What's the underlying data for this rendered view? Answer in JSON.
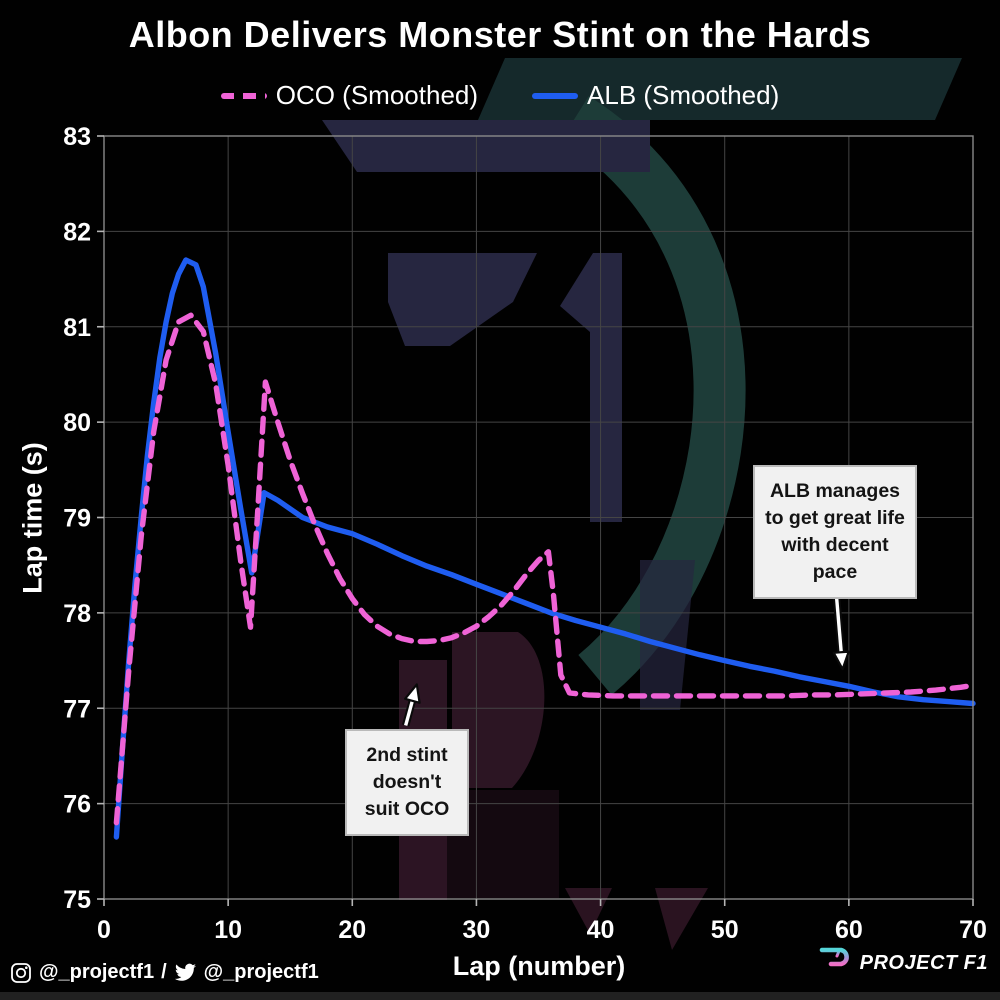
{
  "title": "Albon Delivers Monster Stint on the Hards",
  "legend": [
    {
      "label": "OCO (Smoothed)",
      "color": "#ef63d6",
      "style": "dashed"
    },
    {
      "label": "ALB (Smoothed)",
      "color": "#1f5df0",
      "style": "solid"
    }
  ],
  "colors": {
    "oco": "#ef63d6",
    "alb": "#1f5df0",
    "background": "#000000",
    "grid": "#454545",
    "annotation_bg": "#f1f1f1",
    "watermark_teal": "#1d3c38",
    "watermark_slate": "#262640",
    "watermark_maroon": "#2c1523",
    "logo_gradient_top": "#55d6d9",
    "logo_gradient_bottom": "#f06fc5"
  },
  "footer": {
    "instagram_handle": "@_projectf1",
    "separator": "/",
    "twitter_handle": "@_projectf1",
    "brand": "PROJECT F1"
  },
  "chart_data": {
    "type": "line",
    "title": "Albon Delivers Monster Stint on the Hards",
    "xlabel": "Lap (number)",
    "ylabel": "Lap time (s)",
    "xlim": [
      0,
      70
    ],
    "ylim": [
      75,
      83
    ],
    "xticks": [
      0,
      10,
      20,
      30,
      40,
      50,
      60,
      70
    ],
    "yticks": [
      75,
      76,
      77,
      78,
      79,
      80,
      81,
      82,
      83
    ],
    "grid": true,
    "legend_position": "top",
    "series": [
      {
        "name": "ALB (Smoothed)",
        "color": "#1f5df0",
        "dash": null,
        "x": [
          1,
          1.5,
          2,
          2.5,
          3,
          3.5,
          4,
          4.5,
          5,
          5.5,
          6,
          6.6,
          7.4,
          8,
          9,
          10,
          11,
          11.9,
          12.9,
          14,
          16,
          18,
          20,
          22,
          24,
          26,
          28,
          30,
          32,
          34,
          36,
          38,
          40,
          42,
          44,
          46,
          48,
          50,
          52,
          54,
          56,
          58,
          60,
          62,
          64,
          66,
          68,
          70
        ],
        "y": [
          75.65,
          76.6,
          77.5,
          78.3,
          79.0,
          79.65,
          80.2,
          80.68,
          81.05,
          81.35,
          81.55,
          81.7,
          81.65,
          81.42,
          80.72,
          79.9,
          79.1,
          78.42,
          79.26,
          79.18,
          79.0,
          78.9,
          78.83,
          78.72,
          78.6,
          78.49,
          78.4,
          78.3,
          78.2,
          78.1,
          78.0,
          77.92,
          77.85,
          77.78,
          77.7,
          77.63,
          77.56,
          77.5,
          77.44,
          77.39,
          77.33,
          77.28,
          77.23,
          77.17,
          77.12,
          77.09,
          77.07,
          77.05
        ]
      },
      {
        "name": "OCO (Smoothed)",
        "color": "#ef63d6",
        "dash": "14 9",
        "x": [
          1,
          2,
          3,
          4,
          5,
          6,
          7,
          8,
          9,
          10,
          11,
          11.8,
          12.4,
          13,
          14,
          15,
          16,
          17,
          18,
          19,
          20,
          21,
          22,
          23,
          24,
          25,
          26,
          27,
          28,
          29,
          30,
          31,
          32,
          33,
          34,
          35,
          35.8,
          36.2,
          36.8,
          37.5,
          39,
          41,
          43,
          45,
          47,
          49,
          51,
          53,
          55,
          57,
          59,
          61,
          63,
          65,
          67,
          69,
          70
        ],
        "y": [
          75.8,
          77.4,
          78.8,
          79.9,
          80.65,
          81.05,
          81.12,
          80.95,
          80.4,
          79.55,
          78.55,
          77.85,
          79.1,
          80.42,
          80.0,
          79.6,
          79.25,
          78.92,
          78.62,
          78.36,
          78.15,
          77.98,
          77.86,
          77.78,
          77.73,
          77.7,
          77.7,
          77.71,
          77.74,
          77.79,
          77.86,
          77.96,
          78.08,
          78.23,
          78.4,
          78.55,
          78.64,
          78.2,
          77.35,
          77.16,
          77.14,
          77.13,
          77.13,
          77.13,
          77.13,
          77.13,
          77.13,
          77.13,
          77.13,
          77.14,
          77.14,
          77.15,
          77.16,
          77.17,
          77.19,
          77.22,
          77.24
        ]
      }
    ],
    "annotations": [
      {
        "text": "2nd stint\ndoesn't\nsuit OCO",
        "tail": [
          24.3,
          76.82
        ],
        "xy": [
          25.2,
          77.25
        ]
      },
      {
        "text": "ALB manages\nto get great life\nwith decent\npace",
        "tail": [
          59.0,
          78.18
        ],
        "xy": [
          59.5,
          77.41
        ]
      }
    ]
  }
}
